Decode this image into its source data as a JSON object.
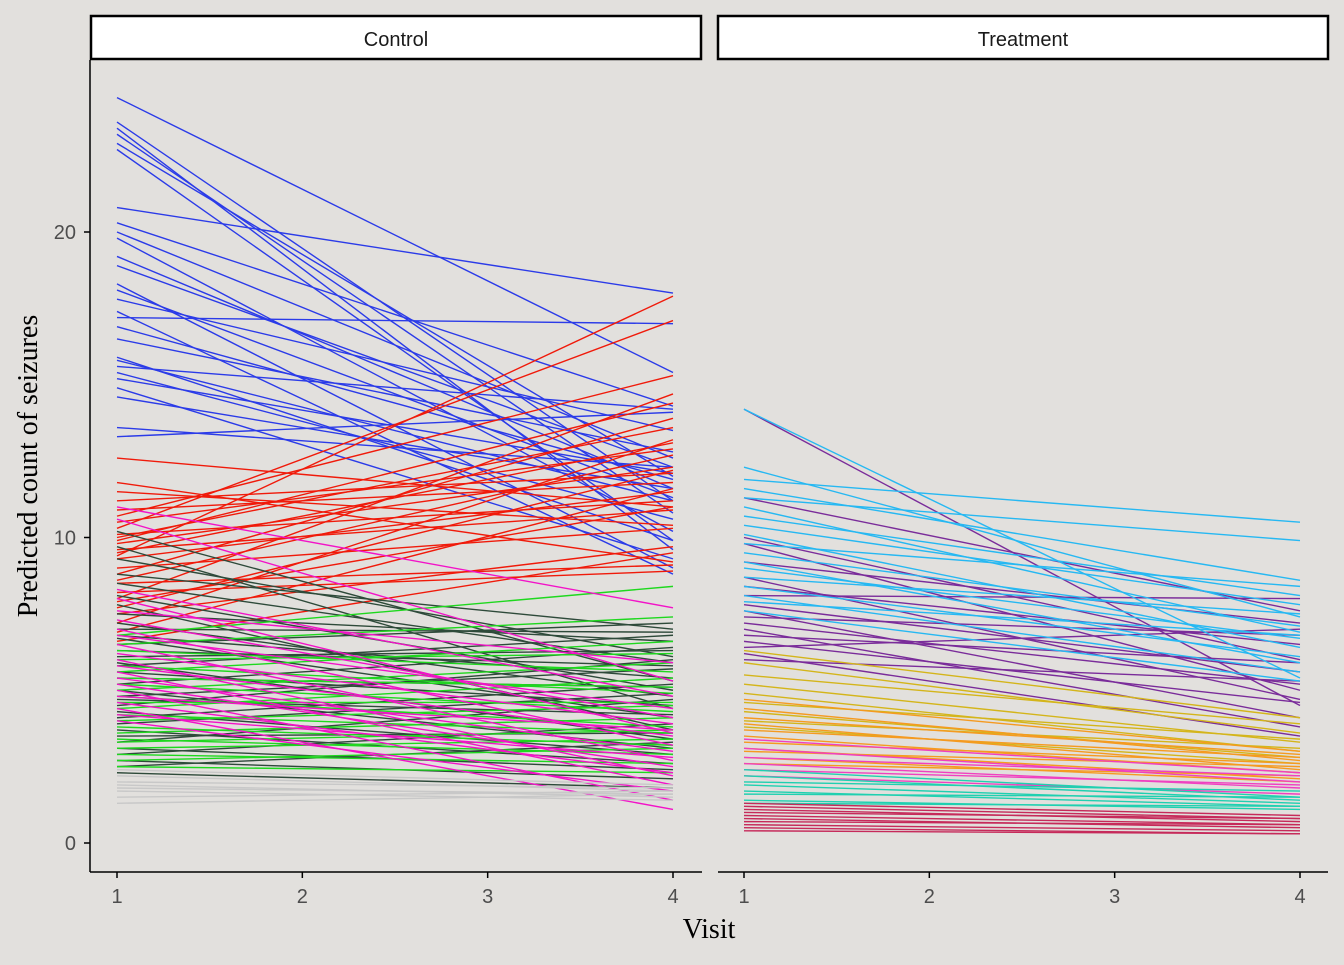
{
  "colors": {
    "background": "#E2E0DD",
    "strip_fill": "#FFFFFF",
    "strip_border": "#000000",
    "axis": "#000000",
    "tick_label": "#4D4D4D",
    "control_groups": {
      "blue": "#2B3BE8",
      "red": "#F01A0A",
      "darkgreen": "#2E4A3A",
      "green": "#1ED81E",
      "magenta": "#F213C8",
      "gray": "#C8C8C8"
    },
    "treatment_groups": {
      "skyblue": "#26B8F2",
      "purple": "#7A2C9A",
      "yellow": "#D4B51A",
      "orange": "#F59A20",
      "pink": "#F040C0",
      "teal": "#1FD0B0",
      "crimson": "#C62A5A"
    }
  },
  "chart_data": {
    "type": "line",
    "x_label": "Visit",
    "y_label": "Predicted count of seizures",
    "x_ticks": [
      "1",
      "2",
      "3",
      "4"
    ],
    "y_ticks": [
      "0",
      "10",
      "20"
    ],
    "x_range": [
      1,
      4
    ],
    "y_range": [
      0,
      25
    ],
    "grid": false,
    "legend": "none",
    "panels": [
      {
        "label": "Control",
        "groups": [
          {
            "color": "blue",
            "lines": [
              [
                24.4,
                15.4
              ],
              [
                23.6,
                11.2
              ],
              [
                23.4,
                9.6
              ],
              [
                23.2,
                10.8
              ],
              [
                22.9,
                12.0
              ],
              [
                22.7,
                9.9
              ],
              [
                20.8,
                18.0
              ],
              [
                20.3,
                14.3
              ],
              [
                20.0,
                12.6
              ],
              [
                19.8,
                10.2
              ],
              [
                19.2,
                11.6
              ],
              [
                18.9,
                12.3
              ],
              [
                18.3,
                9.0
              ],
              [
                18.1,
                11.3
              ],
              [
                17.8,
                13.5
              ],
              [
                17.4,
                8.8
              ],
              [
                17.2,
                17.0
              ],
              [
                16.9,
                11.9
              ],
              [
                16.5,
                12.8
              ],
              [
                15.9,
                9.9
              ],
              [
                15.8,
                11.2
              ],
              [
                15.6,
                14.2
              ],
              [
                15.4,
                10.6
              ],
              [
                15.2,
                12.1
              ],
              [
                14.9,
                9.3
              ],
              [
                14.6,
                11.6
              ],
              [
                13.6,
                12.3
              ],
              [
                13.3,
                14.1
              ]
            ]
          },
          {
            "color": "red",
            "lines": [
              [
                12.6,
                11.0
              ],
              [
                11.8,
                9.2
              ],
              [
                11.5,
                10.4
              ],
              [
                11.2,
                12.1
              ],
              [
                10.9,
                11.8
              ],
              [
                10.7,
                15.3
              ],
              [
                10.5,
                12.9
              ],
              [
                10.3,
                17.1
              ],
              [
                10.1,
                11.2
              ],
              [
                10.0,
                13.6
              ],
              [
                9.9,
                14.4
              ],
              [
                9.8,
                12.3
              ],
              [
                9.6,
                10.9
              ],
              [
                9.5,
                13.1
              ],
              [
                9.4,
                17.9
              ],
              [
                9.3,
                11.5
              ],
              [
                9.0,
                10.3
              ],
              [
                8.8,
                13.9
              ],
              [
                8.6,
                12.7
              ],
              [
                8.5,
                9.1
              ],
              [
                8.2,
                8.9
              ],
              [
                8.0,
                14.7
              ],
              [
                7.9,
                11.0
              ],
              [
                7.7,
                12.2
              ],
              [
                7.5,
                9.7
              ],
              [
                7.2,
                13.2
              ],
              [
                6.9,
                11.6
              ],
              [
                6.6,
                9.5
              ]
            ]
          },
          {
            "color": "darkgreen",
            "lines": [
              [
                10.2,
                5.3
              ],
              [
                9.7,
                4.4
              ],
              [
                9.3,
                6.1
              ],
              [
                8.8,
                7.0
              ],
              [
                8.5,
                5.9
              ],
              [
                8.1,
                5.0
              ],
              [
                7.8,
                3.7
              ],
              [
                7.5,
                6.6
              ],
              [
                7.2,
                4.8
              ],
              [
                7.0,
                6.9
              ],
              [
                6.8,
                5.4
              ],
              [
                6.7,
                4.1
              ],
              [
                6.5,
                7.2
              ],
              [
                6.3,
                5.8
              ],
              [
                6.1,
                6.3
              ],
              [
                5.9,
                3.4
              ],
              [
                5.8,
                6.8
              ],
              [
                5.6,
                4.5
              ],
              [
                5.4,
                5.1
              ],
              [
                5.2,
                6.4
              ],
              [
                5.0,
                3.1
              ],
              [
                4.8,
                5.7
              ],
              [
                4.7,
                4.2
              ],
              [
                4.5,
                6.0
              ],
              [
                4.3,
                2.9
              ],
              [
                4.1,
                5.2
              ],
              [
                3.9,
                4.9
              ],
              [
                3.7,
                2.6
              ],
              [
                3.5,
                3.6
              ],
              [
                3.3,
                4.7
              ],
              [
                3.1,
                2.4
              ],
              [
                2.9,
                3.9
              ],
              [
                2.7,
                2.1
              ],
              [
                2.5,
                3.3
              ],
              [
                2.3,
                1.8
              ]
            ]
          },
          {
            "color": "green",
            "lines": [
              [
                6.8,
                8.4
              ],
              [
                6.5,
                7.4
              ],
              [
                6.3,
                5.6
              ],
              [
                6.0,
                6.2
              ],
              [
                5.8,
                4.9
              ],
              [
                5.6,
                6.6
              ],
              [
                5.4,
                5.1
              ],
              [
                5.2,
                4.3
              ],
              [
                5.0,
                5.9
              ],
              [
                4.8,
                3.8
              ],
              [
                4.6,
                4.6
              ],
              [
                4.4,
                5.4
              ],
              [
                4.2,
                3.6
              ],
              [
                4.0,
                4.5
              ],
              [
                3.8,
                3.2
              ],
              [
                3.6,
                4.1
              ],
              [
                3.4,
                2.9
              ],
              [
                3.3,
                3.7
              ],
              [
                3.1,
                3.4
              ],
              [
                2.9,
                2.6
              ],
              [
                2.7,
                3.1
              ],
              [
                2.5,
                2.3
              ]
            ]
          },
          {
            "color": "magenta",
            "lines": [
              [
                11.0,
                7.7
              ],
              [
                10.6,
                5.3
              ],
              [
                8.3,
                4.8
              ],
              [
                8.0,
                3.6
              ],
              [
                7.6,
                5.9
              ],
              [
                7.3,
                4.1
              ],
              [
                7.0,
                3.2
              ],
              [
                6.8,
                4.4
              ],
              [
                6.5,
                2.7
              ],
              [
                6.2,
                3.9
              ],
              [
                6.0,
                2.2
              ],
              [
                5.8,
                3.5
              ],
              [
                5.6,
                1.9
              ],
              [
                5.4,
                3.0
              ],
              [
                5.2,
                2.5
              ],
              [
                5.0,
                1.4
              ],
              [
                4.8,
                3.7
              ],
              [
                4.6,
                2.3
              ],
              [
                4.4,
                1.1
              ],
              [
                4.2,
                2.8
              ],
              [
                4.0,
                1.7
              ]
            ]
          },
          {
            "color": "gray",
            "lines": [
              [
                2.4,
                1.9
              ],
              [
                2.2,
                1.7
              ],
              [
                2.0,
                1.8
              ],
              [
                1.9,
                1.5
              ],
              [
                1.8,
                1.6
              ],
              [
                1.7,
                1.4
              ],
              [
                1.5,
                1.7
              ],
              [
                1.3,
                1.6
              ]
            ]
          }
        ]
      },
      {
        "label": "Treatment",
        "groups": [
          {
            "color": "purple",
            "lines": [
              [
                14.2,
                4.5
              ],
              [
                11.3,
                7.6
              ],
              [
                10.0,
                6.0
              ],
              [
                9.8,
                5.0
              ],
              [
                9.2,
                7.2
              ],
              [
                8.7,
                4.7
              ],
              [
                8.4,
                6.5
              ],
              [
                8.1,
                8.0
              ],
              [
                7.8,
                5.6
              ],
              [
                7.6,
                4.1
              ],
              [
                7.4,
                6.8
              ],
              [
                7.2,
                5.2
              ],
              [
                7.0,
                3.8
              ],
              [
                6.8,
                5.9
              ],
              [
                6.6,
                4.6
              ],
              [
                6.4,
                7.0
              ],
              [
                6.2,
                3.5
              ],
              [
                6.0,
                5.3
              ]
            ]
          },
          {
            "color": "skyblue",
            "lines": [
              [
                14.2,
                5.4
              ],
              [
                12.3,
                7.4
              ],
              [
                11.9,
                10.5
              ],
              [
                11.6,
                8.6
              ],
              [
                11.3,
                9.9
              ],
              [
                11.0,
                6.9
              ],
              [
                10.7,
                8.1
              ],
              [
                10.4,
                7.8
              ],
              [
                10.1,
                6.4
              ],
              [
                9.8,
                8.4
              ],
              [
                9.5,
                7.1
              ],
              [
                9.2,
                5.9
              ],
              [
                9.0,
                6.7
              ],
              [
                8.7,
                7.5
              ],
              [
                8.4,
                6.1
              ],
              [
                8.1,
                5.6
              ],
              [
                7.9,
                6.8
              ],
              [
                7.6,
                5.3
              ]
            ]
          },
          {
            "color": "yellow",
            "lines": [
              [
                6.3,
                4.1
              ],
              [
                5.9,
                3.6
              ],
              [
                5.5,
                3.9
              ],
              [
                5.2,
                3.3
              ],
              [
                4.9,
                3.0
              ],
              [
                4.6,
                3.4
              ],
              [
                4.3,
                2.8
              ],
              [
                4.0,
                3.1
              ],
              [
                3.8,
                2.6
              ]
            ]
          },
          {
            "color": "orange",
            "lines": [
              [
                4.7,
                3.0
              ],
              [
                4.4,
                2.7
              ],
              [
                4.1,
                2.9
              ],
              [
                3.9,
                2.4
              ],
              [
                3.7,
                2.8
              ],
              [
                3.5,
                2.3
              ],
              [
                3.3,
                2.6
              ],
              [
                3.1,
                2.1
              ],
              [
                3.0,
                2.5
              ],
              [
                2.8,
                2.0
              ],
              [
                2.6,
                2.2
              ]
            ]
          },
          {
            "color": "pink",
            "lines": [
              [
                3.4,
                2.3
              ],
              [
                3.1,
                2.0
              ],
              [
                2.8,
                2.2
              ],
              [
                2.6,
                1.8
              ],
              [
                2.4,
                1.9
              ],
              [
                2.2,
                1.6
              ]
            ]
          },
          {
            "color": "teal",
            "lines": [
              [
                2.4,
                1.5
              ],
              [
                2.2,
                1.4
              ],
              [
                2.0,
                1.7
              ],
              [
                1.9,
                1.3
              ],
              [
                1.7,
                1.2
              ],
              [
                1.6,
                1.5
              ],
              [
                1.4,
                1.1
              ],
              [
                1.3,
                1.2
              ]
            ]
          },
          {
            "color": "crimson",
            "lines": [
              [
                1.3,
                0.9
              ],
              [
                1.2,
                0.8
              ],
              [
                1.1,
                0.7
              ],
              [
                1.0,
                0.8
              ],
              [
                0.9,
                0.6
              ],
              [
                0.8,
                0.5
              ],
              [
                0.7,
                0.6
              ],
              [
                0.6,
                0.4
              ],
              [
                0.5,
                0.3
              ],
              [
                0.4,
                0.3
              ]
            ]
          }
        ]
      }
    ]
  }
}
